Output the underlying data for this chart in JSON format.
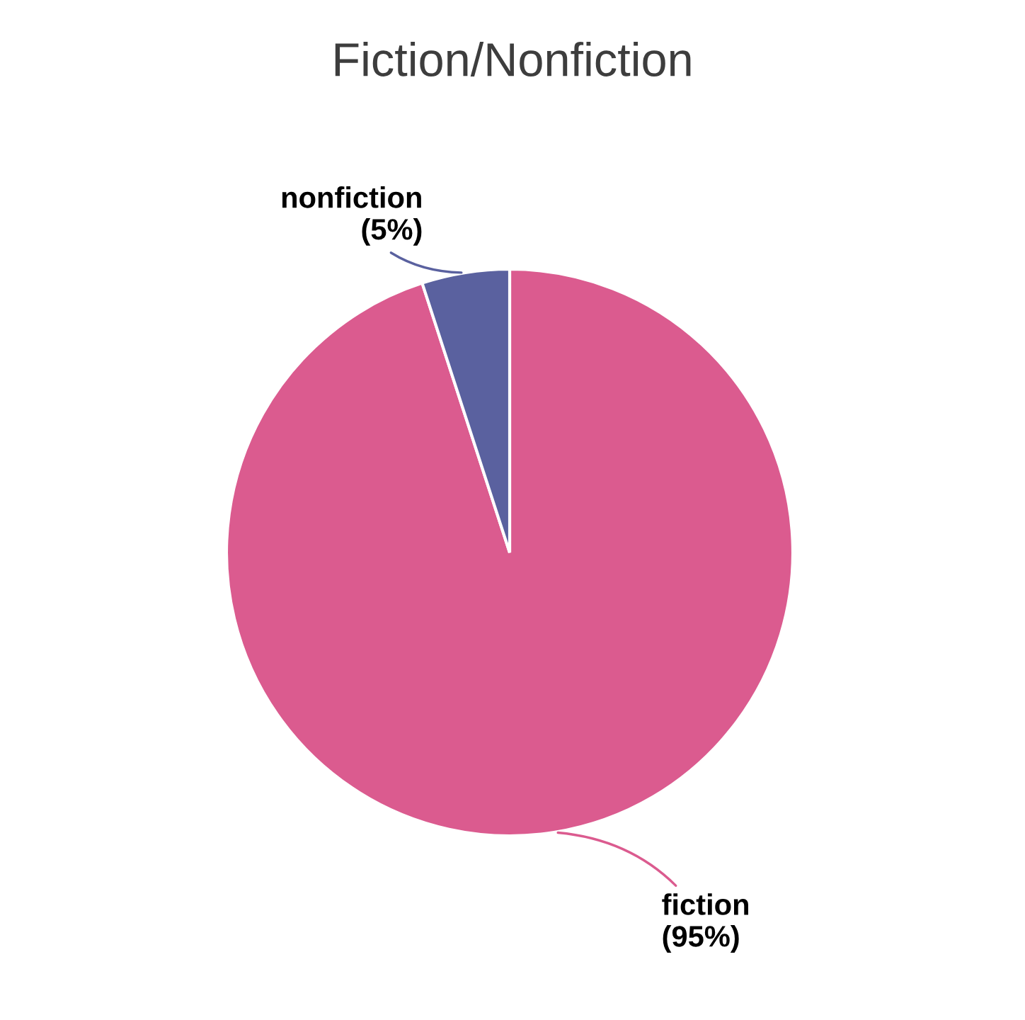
{
  "chart_data": {
    "type": "pie",
    "title": "Fiction/Nonfiction",
    "categories": [
      "fiction",
      "nonfiction"
    ],
    "values": [
      95,
      5
    ],
    "value_labels": [
      "(95%)",
      "(5%)"
    ],
    "colors": [
      "#db5b8f",
      "#5a619f"
    ],
    "legend": false
  }
}
